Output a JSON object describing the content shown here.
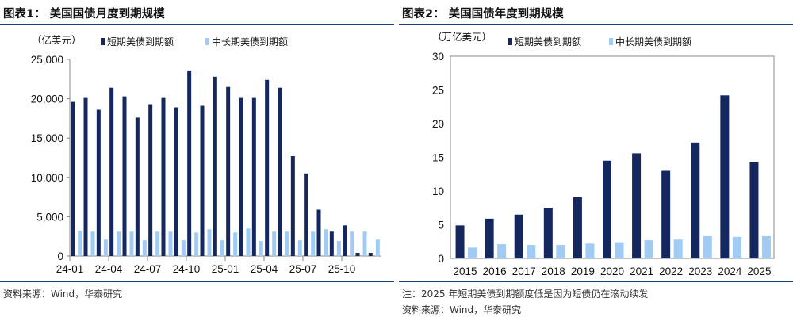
{
  "colors": {
    "short": "#14285f",
    "long": "#9fcbf5",
    "rule": "#1c3f7d",
    "axis": "#888888"
  },
  "charts": [
    {
      "fig_title": "图表1：  美国国债月度到期规模",
      "notes": [
        "资料来源：Wind，华泰研究"
      ],
      "chart_data": {
        "type": "bar",
        "ylabel": "（亿美元）",
        "ylim": [
          0,
          25000
        ],
        "yticks": [
          "0",
          "5,000",
          "10,000",
          "15,000",
          "20,000",
          "25,000"
        ],
        "ytick_values": [
          0,
          5000,
          10000,
          15000,
          20000,
          25000
        ],
        "legend_position": "top",
        "x_labels": [
          {
            "index": 0,
            "label": "24-01"
          },
          {
            "index": 3,
            "label": "24-04"
          },
          {
            "index": 6,
            "label": "24-07"
          },
          {
            "index": 9,
            "label": "24-10"
          },
          {
            "index": 12,
            "label": "25-01"
          },
          {
            "index": 15,
            "label": "25-04"
          },
          {
            "index": 18,
            "label": "25-07"
          },
          {
            "index": 21,
            "label": "25-10"
          }
        ],
        "categories": [
          "24-01",
          "24-02",
          "24-03",
          "24-04",
          "24-05",
          "24-06",
          "24-07",
          "24-08",
          "24-09",
          "24-10",
          "24-11",
          "24-12",
          "25-01",
          "25-02",
          "25-03",
          "25-04",
          "25-05",
          "25-06",
          "25-07",
          "25-08",
          "25-09",
          "25-10",
          "25-11",
          "25-12"
        ],
        "series": [
          {
            "name": "短期美债到期额",
            "values": [
              19600,
              20100,
              18600,
              21400,
              20300,
              17600,
              19300,
              20100,
              18900,
              23600,
              19100,
              22800,
              21500,
              20100,
              20100,
              22400,
              21400,
              12700,
              10500,
              5900,
              3100,
              3900,
              400,
              400
            ]
          },
          {
            "name": "中长期美债到期额",
            "values": [
              3200,
              3100,
              2100,
              3100,
              3100,
              2000,
              3100,
              3100,
              2000,
              3000,
              3400,
              2000,
              3000,
              3500,
              1900,
              3100,
              3100,
              2000,
              3100,
              3400,
              1900,
              3100,
              3100,
              2100
            ]
          }
        ]
      }
    },
    {
      "fig_title": "图表2：  美国国债年度到期规模",
      "notes": [
        "注：2025 年短期美债到期额度低是因为短债仍在滚动续发",
        "资料来源：Wind，华泰研究"
      ],
      "chart_data": {
        "type": "bar",
        "ylabel": "（万亿美元）",
        "ylim": [
          0,
          30
        ],
        "yticks": [
          "0",
          "5",
          "10",
          "15",
          "20",
          "25",
          "30"
        ],
        "ytick_values": [
          0,
          5,
          10,
          15,
          20,
          25,
          30
        ],
        "legend_position": "top",
        "x_labels": [
          {
            "index": 0,
            "label": "2015"
          },
          {
            "index": 1,
            "label": "2016"
          },
          {
            "index": 2,
            "label": "2017"
          },
          {
            "index": 3,
            "label": "2018"
          },
          {
            "index": 4,
            "label": "2019"
          },
          {
            "index": 5,
            "label": "2020"
          },
          {
            "index": 6,
            "label": "2021"
          },
          {
            "index": 7,
            "label": "2022"
          },
          {
            "index": 8,
            "label": "2023"
          },
          {
            "index": 9,
            "label": "2024"
          },
          {
            "index": 10,
            "label": "2025"
          }
        ],
        "categories": [
          "2015",
          "2016",
          "2017",
          "2018",
          "2019",
          "2020",
          "2021",
          "2022",
          "2023",
          "2024",
          "2025"
        ],
        "series": [
          {
            "name": "短期美债到期额",
            "values": [
              4.9,
              5.9,
              6.5,
              7.5,
              9.1,
              14.5,
              15.6,
              13.0,
              17.2,
              24.2,
              14.3
            ]
          },
          {
            "name": "中长期美债到期额",
            "values": [
              1.6,
              2.1,
              2.0,
              2.0,
              2.2,
              2.4,
              2.7,
              2.8,
              3.3,
              3.2,
              3.3
            ]
          }
        ]
      }
    }
  ]
}
